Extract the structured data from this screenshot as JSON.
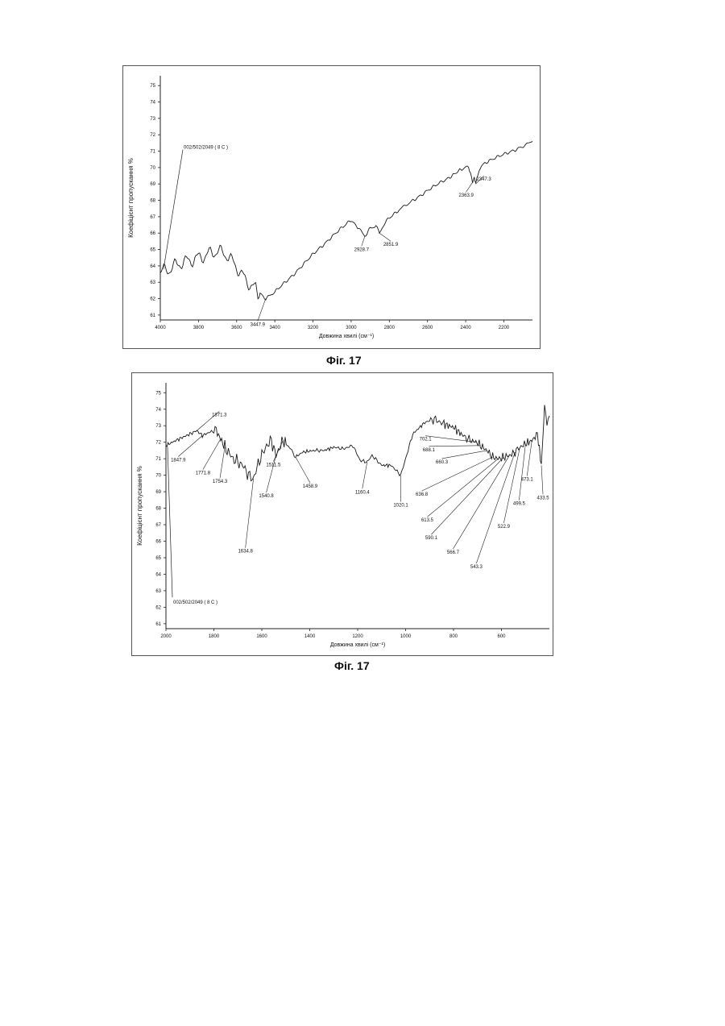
{
  "chart_data": [
    {
      "type": "line",
      "caption": "Фіг. 17",
      "ylabel": "Коефіцієнт пропускання %",
      "xlabel": "Довжина хвилі (см⁻¹)",
      "xlim": [
        4000,
        2050
      ],
      "ylim": [
        60.7,
        75.6
      ],
      "xticks": [
        4000,
        3800,
        3600,
        3400,
        3200,
        3000,
        2800,
        2600,
        2400,
        2200
      ],
      "yticks": [
        61,
        62,
        63,
        64,
        65,
        66,
        67,
        68,
        69,
        70,
        71,
        72,
        73,
        74,
        75
      ],
      "grid": false,
      "series": [
        {
          "name": "002/502/2049 ( 8 C )",
          "x": [
            4000,
            3950,
            3900,
            3850,
            3800,
            3750,
            3700,
            3650,
            3600,
            3550,
            3500,
            3447.9,
            3400,
            3300,
            3200,
            3100,
            3000,
            2960,
            2928.7,
            2900,
            2870,
            2851.9,
            2820,
            2750,
            2700,
            2600,
            2500,
            2420,
            2385,
            2363.9,
            2355,
            2347.3,
            2330,
            2300,
            2200,
            2100,
            2050
          ],
          "y": [
            63.6,
            63.7,
            64.1,
            64.4,
            64.6,
            64.7,
            64.8,
            64.6,
            64.0,
            63.2,
            62.6,
            62.0,
            62.4,
            63.5,
            64.7,
            65.8,
            66.8,
            66.3,
            65.8,
            66.3,
            66.4,
            66.0,
            66.7,
            67.4,
            67.8,
            68.6,
            69.3,
            69.9,
            70.1,
            69.1,
            69.4,
            69.0,
            69.9,
            70.3,
            70.8,
            71.3,
            71.6
          ]
        }
      ],
      "annotations": [
        {
          "label": "3447.9",
          "x": 3447.9,
          "y": 62.0
        },
        {
          "label": "2928.7",
          "x": 2928.7,
          "y": 65.8
        },
        {
          "label": "2851.9",
          "x": 2851.9,
          "y": 66.0
        },
        {
          "label": "2363.9",
          "x": 2363.9,
          "y": 69.1
        },
        {
          "label": "2347.3",
          "x": 2347.3,
          "y": 69.0
        }
      ]
    },
    {
      "type": "line",
      "caption": "Фіг. 17",
      "ylabel": "Коефіцієнт пропускання %",
      "xlabel": "Довжина хвилі (см⁻¹)",
      "xlim": [
        2000,
        400
      ],
      "ylim": [
        60.7,
        75.6
      ],
      "xticks": [
        2000,
        1800,
        1600,
        1400,
        1200,
        1000,
        800,
        600
      ],
      "yticks": [
        61,
        62,
        63,
        64,
        65,
        66,
        67,
        68,
        69,
        70,
        71,
        72,
        73,
        74,
        75
      ],
      "grid": false,
      "series": [
        {
          "name": "002/502/2049 ( 8 C )",
          "x": [
            2000,
            1960,
            1900,
            1871.3,
            1847.9,
            1820,
            1790,
            1771.8,
            1754.3,
            1720,
            1680,
            1650,
            1634.8,
            1610,
            1580,
            1560,
            1540.8,
            1511.5,
            1480,
            1458.9,
            1430,
            1380,
            1340,
            1300,
            1260,
            1220,
            1190,
            1160.4,
            1140,
            1100,
            1060,
            1040,
            1020.1,
            1000,
            970,
            920,
            880,
            840,
            800,
            760,
            730,
            702.1,
            688.1,
            660.3,
            636.8,
            613.5,
            590.1,
            566.7,
            543.3,
            522.9,
            499.5,
            473.1,
            450,
            433.5,
            420,
            410,
            400
          ],
          "y": [
            71.8,
            72.1,
            72.5,
            72.7,
            72.4,
            72.6,
            72.7,
            72.2,
            71.7,
            71.0,
            70.6,
            69.9,
            69.8,
            70.9,
            71.8,
            72.1,
            71.2,
            72.1,
            71.6,
            71.1,
            71.4,
            71.5,
            71.5,
            71.7,
            71.6,
            71.8,
            70.9,
            70.8,
            71.2,
            70.6,
            70.6,
            70.3,
            70.0,
            71.0,
            72.5,
            73.2,
            73.4,
            73.1,
            72.9,
            72.4,
            72.1,
            72.0,
            71.8,
            71.5,
            71.1,
            71.0,
            71.1,
            71.2,
            71.4,
            71.7,
            71.9,
            72.1,
            72.5,
            70.6,
            74.2,
            73.2,
            73.6
          ]
        }
      ],
      "annotations": [
        {
          "label": "1871.3",
          "x": 1871.3,
          "y": 72.7
        },
        {
          "label": "1847.9",
          "x": 1847.9,
          "y": 72.4
        },
        {
          "label": "1771.8",
          "x": 1771.8,
          "y": 72.2
        },
        {
          "label": "1754.3",
          "x": 1754.3,
          "y": 71.7
        },
        {
          "label": "1634.8",
          "x": 1634.8,
          "y": 69.8
        },
        {
          "label": "1540.8",
          "x": 1540.8,
          "y": 71.2
        },
        {
          "label": "1511.5",
          "x": 1511.5,
          "y": 72.1
        },
        {
          "label": "1458.9",
          "x": 1458.9,
          "y": 71.1
        },
        {
          "label": "1160.4",
          "x": 1160.4,
          "y": 70.8
        },
        {
          "label": "1020.1",
          "x": 1020.1,
          "y": 70.0
        },
        {
          "label": "702.1",
          "x": 702.1,
          "y": 72.0
        },
        {
          "label": "688.1",
          "x": 688.1,
          "y": 71.8
        },
        {
          "label": "660.3",
          "x": 660.3,
          "y": 71.5
        },
        {
          "label": "636.8",
          "x": 636.8,
          "y": 71.1
        },
        {
          "label": "613.5",
          "x": 613.5,
          "y": 71.0
        },
        {
          "label": "590.1",
          "x": 590.1,
          "y": 71.1
        },
        {
          "label": "566.7",
          "x": 566.7,
          "y": 71.2
        },
        {
          "label": "543.3",
          "x": 543.3,
          "y": 71.4
        },
        {
          "label": "522.9",
          "x": 522.9,
          "y": 71.7
        },
        {
          "label": "499.5",
          "x": 499.5,
          "y": 71.9
        },
        {
          "label": "473.1",
          "x": 473.1,
          "y": 72.1
        },
        {
          "label": "433.5",
          "x": 433.5,
          "y": 70.6
        }
      ]
    }
  ],
  "colors": {
    "line": "#1a1a1a",
    "frame": "#555555"
  }
}
